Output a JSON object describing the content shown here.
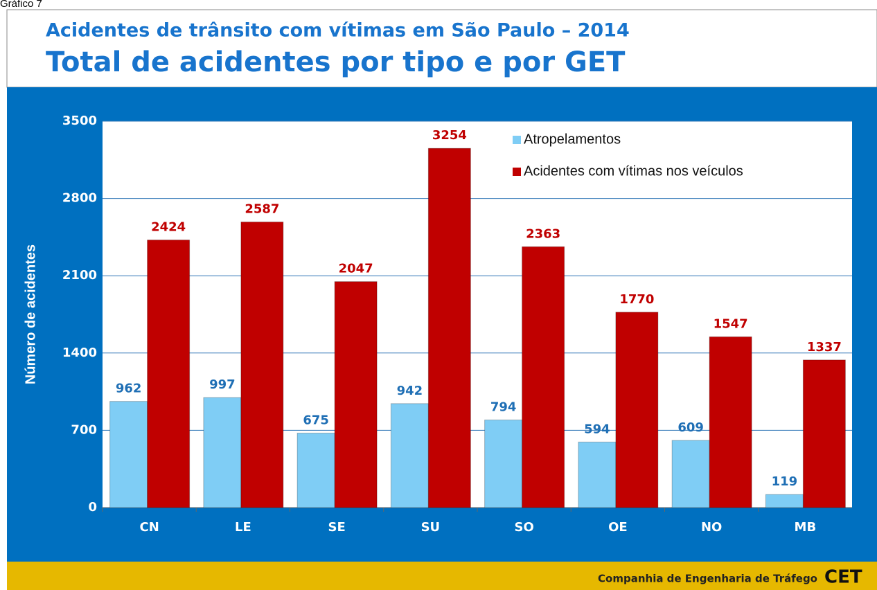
{
  "page_label": "Gráfico 7",
  "chart_data": {
    "type": "bar",
    "title": "Acidentes de trânsito com vítimas em São Paulo – 2014",
    "subtitle": "Total de acidentes por tipo e por GET",
    "y_label": "Número de acidentes",
    "categories": [
      "CN",
      "LE",
      "SE",
      "SU",
      "SO",
      "OE",
      "NO",
      "MB"
    ],
    "series": [
      {
        "name": "Atropelamentos",
        "color": "#7fcdf5",
        "label_color": "#1f6fb5",
        "values": [
          962,
          997,
          675,
          942,
          794,
          594,
          609,
          119
        ]
      },
      {
        "name": "Acidentes com vítimas nos veículos",
        "color": "#c00000",
        "label_color": "#c00000",
        "values": [
          2424,
          2587,
          2047,
          3254,
          2363,
          1770,
          1547,
          1337
        ]
      }
    ],
    "ylim": [
      0,
      3500
    ],
    "yticks": [
      0,
      700,
      1400,
      2100,
      2800,
      3500
    ],
    "grid": true,
    "legend": "top-right"
  },
  "footer": {
    "organization": "Companhia de Engenharia de Tráfego",
    "logo": "CET"
  }
}
